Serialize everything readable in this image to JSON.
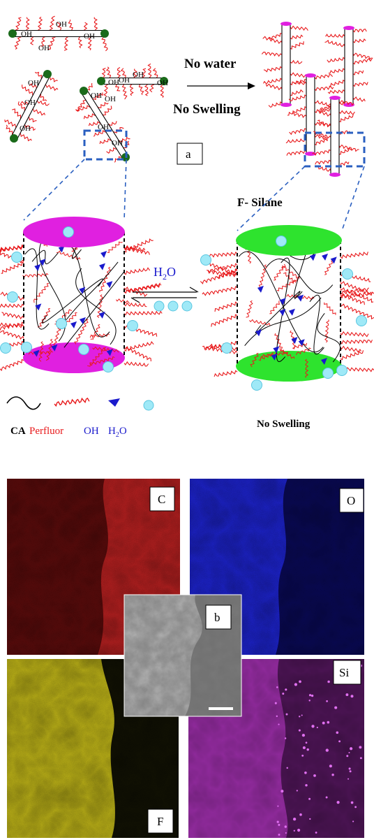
{
  "panel_a": {
    "label": "a",
    "oh": "OH",
    "arrow_top": "No water",
    "arrow_bottom": "No Swelling",
    "f_silane": "F- Silane",
    "water_arrow_label": "H",
    "water_arrow_sub": "2",
    "water_arrow_tail": "O",
    "no_swelling_right": "No Swelling",
    "legend": {
      "ca": "CA",
      "perfluor": "Perfluor",
      "oh": "OH",
      "h2o_h": "H",
      "h2o_sub": "2",
      "h2o_o": "O"
    }
  },
  "panel_b": {
    "label": "b",
    "maps": {
      "c": "C",
      "o": "O",
      "f": "F",
      "si": "Si"
    }
  },
  "colors": {
    "perfluor": "#e8191b",
    "oh": "#1a1acc",
    "water": "#9fe9f7",
    "cap_left": "#e020e0",
    "cap_right": "#2ee32e",
    "node": "#1a6a1a",
    "dashed": "#2a5fc0",
    "map_c": "#b32020",
    "map_o": "#1d23c8",
    "map_f": "#b8ae18",
    "map_si": "#8e2a9a"
  }
}
